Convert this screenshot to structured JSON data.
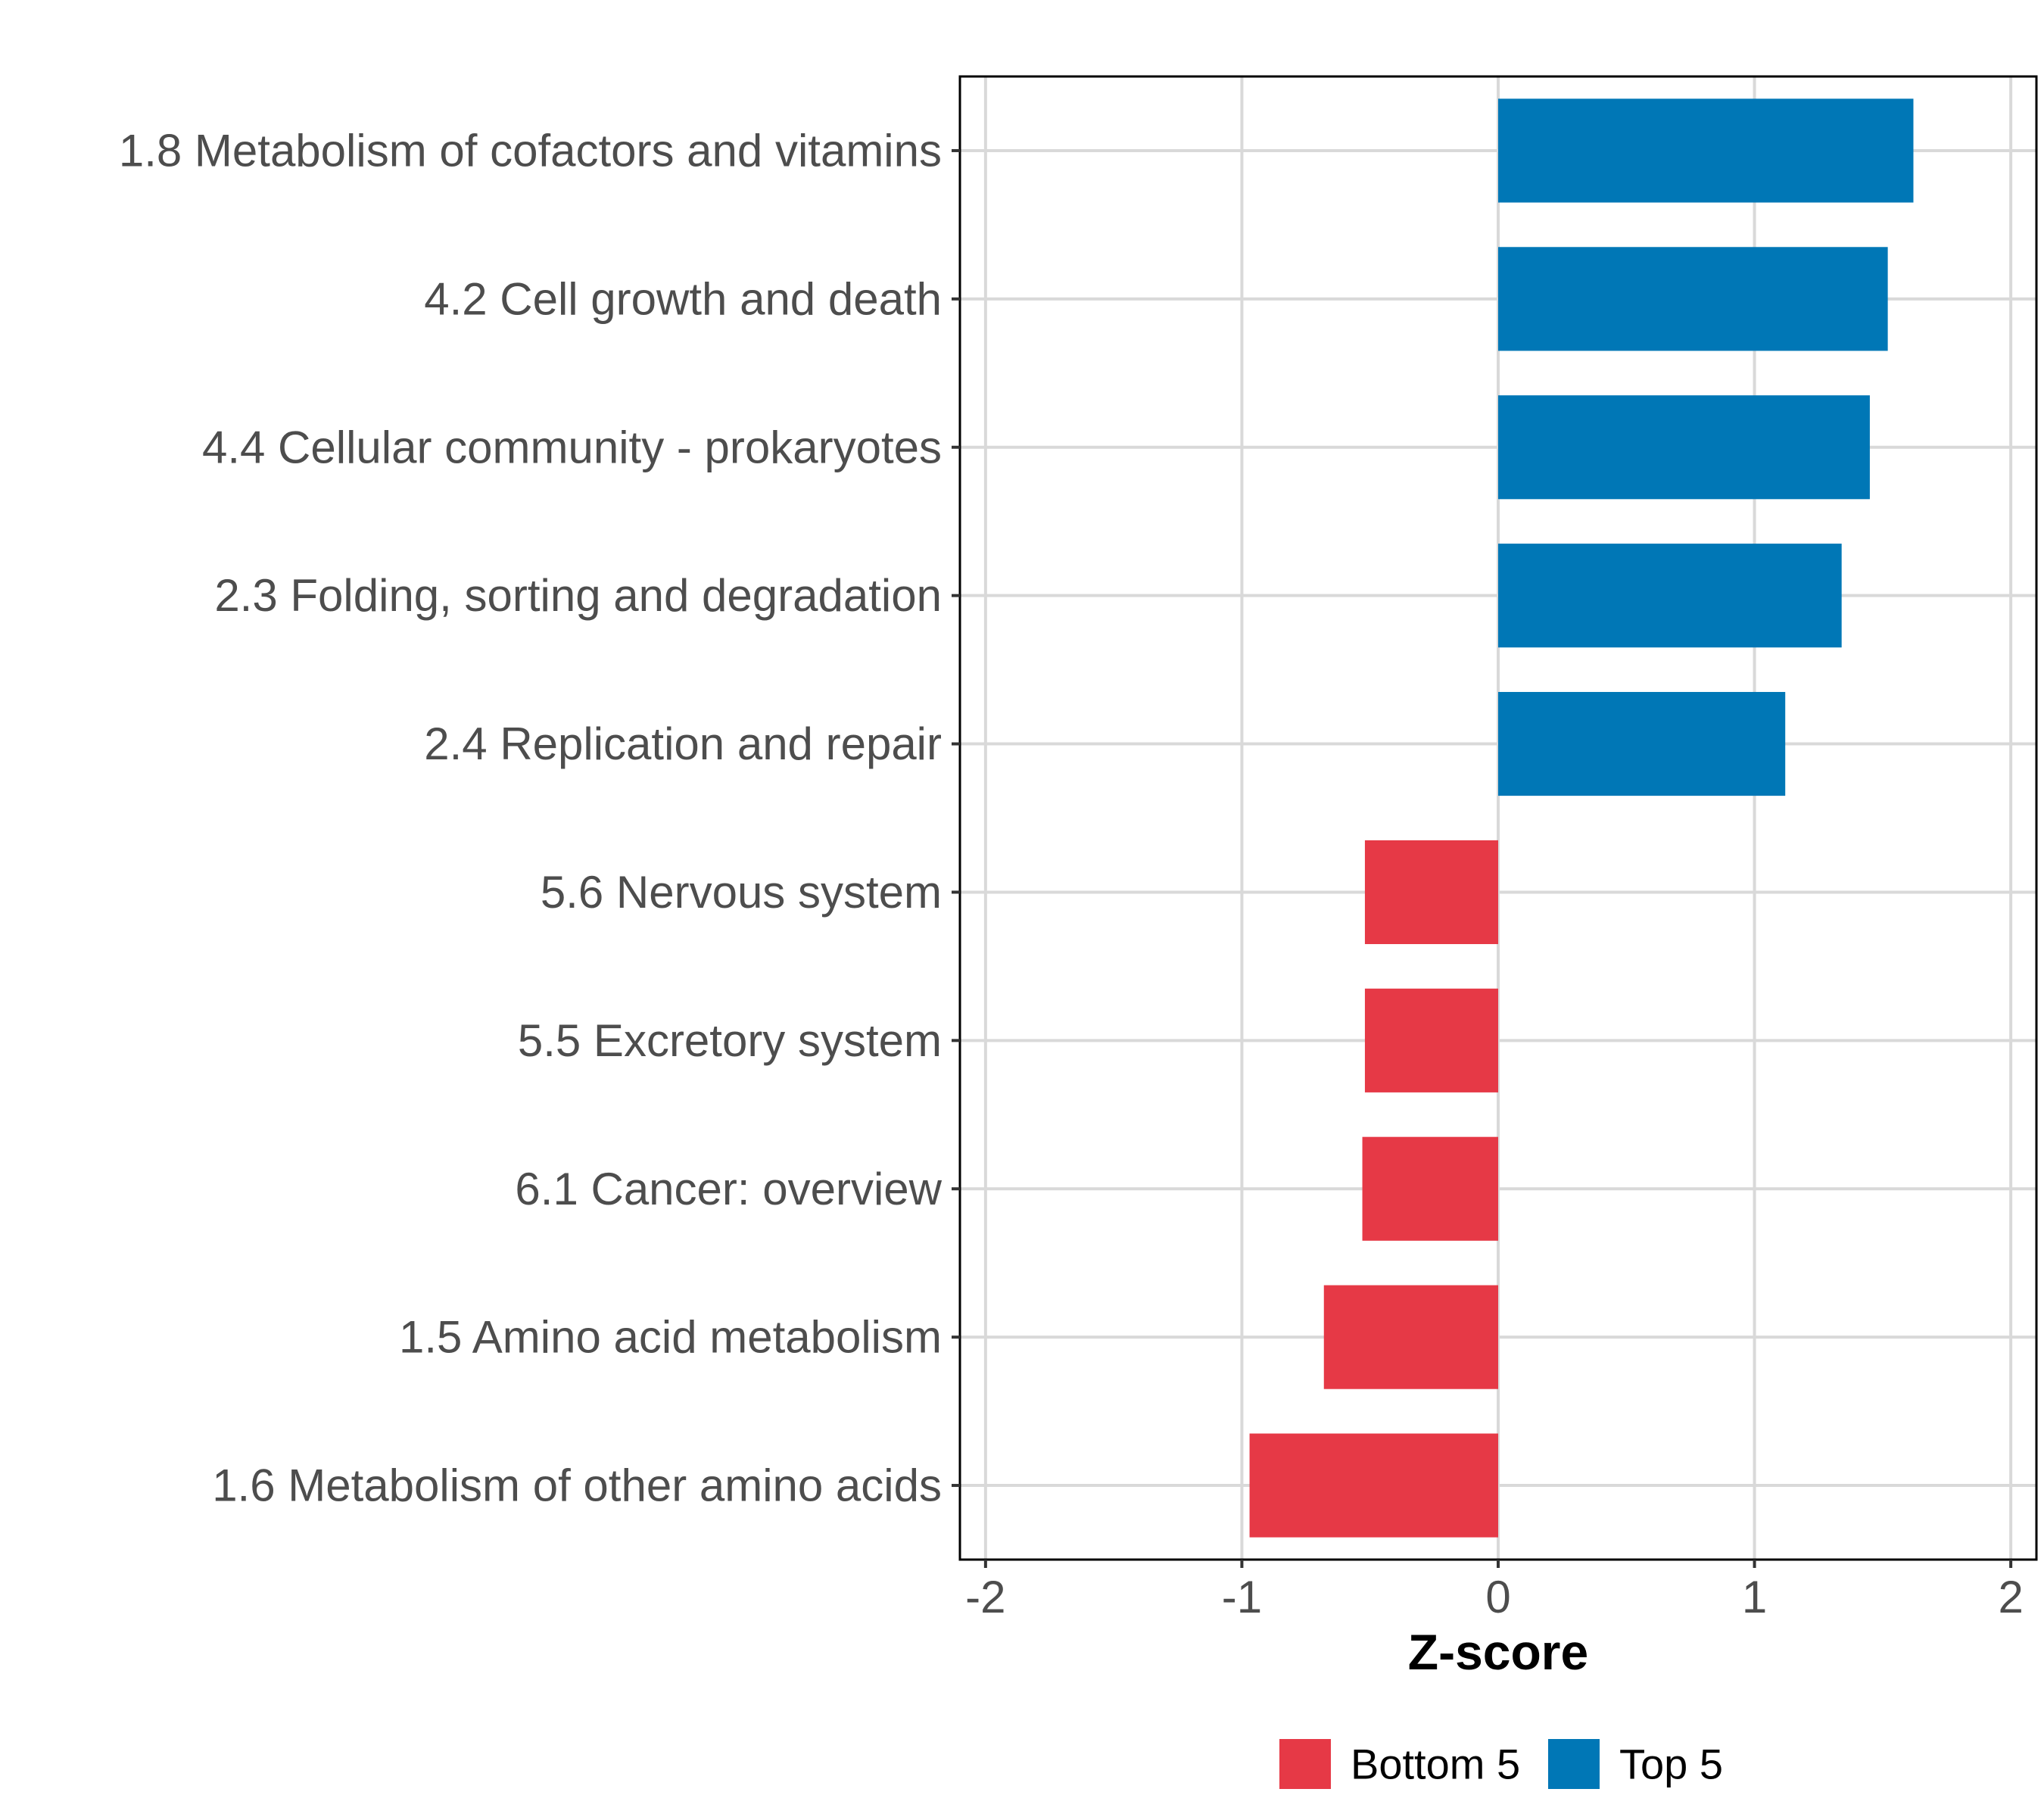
{
  "chart_data": {
    "type": "bar",
    "orientation": "horizontal",
    "title": "",
    "xlabel": "Z-score",
    "ylabel": "",
    "xlim": [
      -2.1,
      2.1
    ],
    "xticks": [
      -2,
      -1,
      0,
      1,
      2
    ],
    "xtick_labels": [
      "-2",
      "-1",
      "0",
      "1",
      "2"
    ],
    "grid": true,
    "legend_position": "bottom",
    "categories": [
      "1.8 Metabolism of cofactors and vitamins",
      "4.2 Cell growth and death",
      "4.4 Cellular community - prokaryotes",
      "2.3 Folding, sorting and degradation",
      "2.4 Replication and repair",
      "5.6 Nervous system",
      "5.5 Excretory system",
      "6.1 Cancer: overview",
      "1.5 Amino acid metabolism",
      "1.6 Metabolism of other amino acids"
    ],
    "values": [
      1.62,
      1.52,
      1.45,
      1.34,
      1.12,
      -0.52,
      -0.52,
      -0.53,
      -0.68,
      -0.97
    ],
    "groups": [
      "Top 5",
      "Top 5",
      "Top 5",
      "Top 5",
      "Top 5",
      "Bottom 5",
      "Bottom 5",
      "Bottom 5",
      "Bottom 5",
      "Bottom 5"
    ],
    "legend": [
      {
        "label": "Bottom 5",
        "color": "#E63946"
      },
      {
        "label": "Top 5",
        "color": "#0077B6"
      }
    ]
  }
}
